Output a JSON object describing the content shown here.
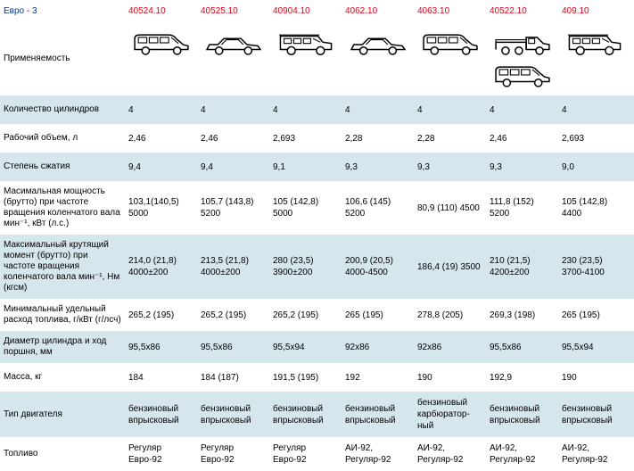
{
  "bg_stripe": "#d6e6ed",
  "header_color": "#e2001a",
  "header": {
    "title": "Евро - 3",
    "models": [
      "40524.10",
      "40525.10",
      "40904.10",
      "4062.10",
      "4063.10",
      "40522.10",
      "409.10"
    ]
  },
  "icons_row_label": "Применяемость",
  "columns_icons": [
    [
      "van"
    ],
    [
      "sedan"
    ],
    [
      "suv"
    ],
    [
      "sedan"
    ],
    [
      "van"
    ],
    [
      "truck",
      "van"
    ],
    [
      "suv"
    ]
  ],
  "rows": [
    {
      "label": "Количество цилиндров",
      "stripe": true,
      "vals": [
        "4",
        "4",
        "4",
        "4",
        "4",
        "4",
        "4"
      ]
    },
    {
      "label": "Рабочий объем, л",
      "stripe": false,
      "vals": [
        "2,46",
        "2,46",
        "2,693",
        "2,28",
        "2,28",
        "2,46",
        "2,693"
      ]
    },
    {
      "label": "Степень сжатия",
      "stripe": true,
      "vals": [
        "9,4",
        "9,4",
        "9,1",
        "9,3",
        "9,3",
        "9,3",
        "9,0"
      ]
    },
    {
      "label": "Масимальная мощность (брутто) при частоте вращения коленчатого вала мин⁻¹, кВт (л.с.)",
      "stripe": false,
      "vals": [
        "103,1(140,5) 5000",
        "105,7 (143,8) 5200",
        "105 (142,8) 5000",
        "106,6 (145) 5200",
        "80,9 (110) 4500",
        "111,8 (152) 5200",
        "105 (142,8) 4400"
      ]
    },
    {
      "label": "Максимальный крутящий момент (брутто) при частоте вращения коленчатого вала мин⁻¹, Нм (кгсм)",
      "stripe": true,
      "vals": [
        "214,0 (21,8) 4000±200",
        "213,5 (21,8) 4000±200",
        "280 (23,5) 3900±200",
        "200,9 (20,5) 4000-4500",
        "186,4 (19) 3500",
        "210 (21,5) 4200±200",
        "230 (23,5) 3700-4100"
      ]
    },
    {
      "label": "Минимальный удельный расход топлива, г/кВт (г/лсч)",
      "stripe": false,
      "vals": [
        "265,2 (195)",
        "265,2 (195)",
        "265,2 (195)",
        "265 (195)",
        "278,8 (205)",
        "269,3 (198)",
        "265 (195)"
      ]
    },
    {
      "label": "Диаметр цилиндра и ход поршня, мм",
      "stripe": true,
      "vals": [
        "95,5x86",
        "95,5x86",
        "95,5x94",
        "92x86",
        "92x86",
        "95,5x86",
        "95,5x94"
      ]
    },
    {
      "label": "Масса, кг",
      "stripe": false,
      "vals": [
        "184",
        "184 (187)",
        "191,5 (195)",
        "192",
        "190",
        "192,9",
        "190"
      ]
    },
    {
      "label": "Тип двигателя",
      "stripe": true,
      "vals": [
        "бензиновый впрысковый",
        "бензиновый впрысковый",
        "бензиновый впрысковый",
        "бензиновый впрысковый",
        "бензиновый карбюратор-ный",
        "бензиновый впрысковый",
        "бензиновый впрысковый"
      ]
    },
    {
      "label": "Топливо",
      "stripe": false,
      "vals": [
        "Регуляр Евро-92",
        "Регуляр Евро-92",
        "Регуляр Евро-92",
        "АИ-92, Регуляр-92",
        "АИ-92, Регуляр-92",
        "АИ-92, Регуляр-92",
        "АИ-92, Регуляр-92"
      ]
    }
  ]
}
